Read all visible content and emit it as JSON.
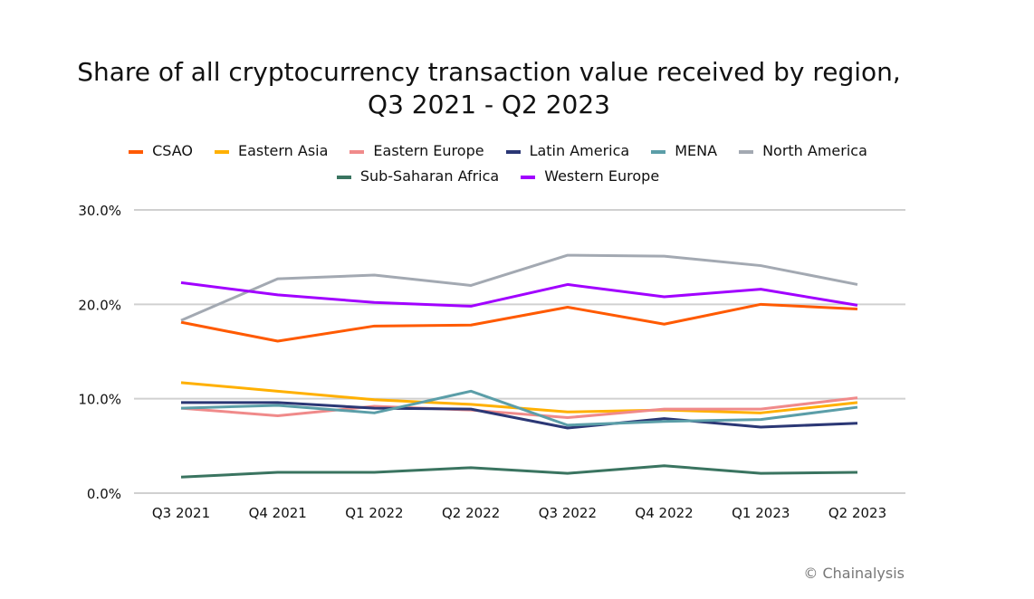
{
  "chart_data": {
    "type": "line",
    "title": "Share of all cryptocurrency transaction value received by region,",
    "subtitle": "Q3 2021 - Q2 2023",
    "categories": [
      "Q3 2021",
      "Q4 2021",
      "Q1 2022",
      "Q2 2022",
      "Q3 2022",
      "Q4 2022",
      "Q1 2023",
      "Q2 2023"
    ],
    "ylim": [
      0,
      30
    ],
    "yticks": [
      "0.0%",
      "10.0%",
      "20.0%",
      "30.0%"
    ],
    "grid": true,
    "legend_position": "top",
    "series": [
      {
        "name": "CSAO",
        "color": "#ff5a00",
        "values": [
          18.1,
          16.1,
          17.7,
          17.8,
          19.7,
          17.9,
          20.0,
          19.5
        ]
      },
      {
        "name": "Eastern Asia",
        "color": "#ffb000",
        "values": [
          11.7,
          10.8,
          9.9,
          9.4,
          8.6,
          8.8,
          8.5,
          9.6
        ]
      },
      {
        "name": "Eastern Europe",
        "color": "#f08a8a",
        "values": [
          9.0,
          8.2,
          9.2,
          8.8,
          8.0,
          8.9,
          8.9,
          10.1
        ]
      },
      {
        "name": "Latin America",
        "color": "#2b3775",
        "values": [
          9.6,
          9.6,
          9.0,
          8.9,
          6.9,
          7.9,
          7.0,
          7.4
        ]
      },
      {
        "name": "MENA",
        "color": "#5b9ea8",
        "values": [
          9.0,
          9.3,
          8.5,
          10.8,
          7.2,
          7.6,
          7.8,
          9.1
        ]
      },
      {
        "name": "North America",
        "color": "#a3a9b2",
        "values": [
          18.3,
          22.7,
          23.1,
          22.0,
          25.2,
          25.1,
          24.1,
          22.1
        ]
      },
      {
        "name": "Sub-Saharan Africa",
        "color": "#3a7460",
        "values": [
          1.7,
          2.2,
          2.2,
          2.7,
          2.1,
          2.9,
          2.1,
          2.2
        ]
      },
      {
        "name": "Western Europe",
        "color": "#a100ff",
        "values": [
          22.3,
          21.0,
          20.2,
          19.8,
          22.1,
          20.8,
          21.6,
          19.9
        ]
      }
    ]
  },
  "credit": "© Chainalysis"
}
